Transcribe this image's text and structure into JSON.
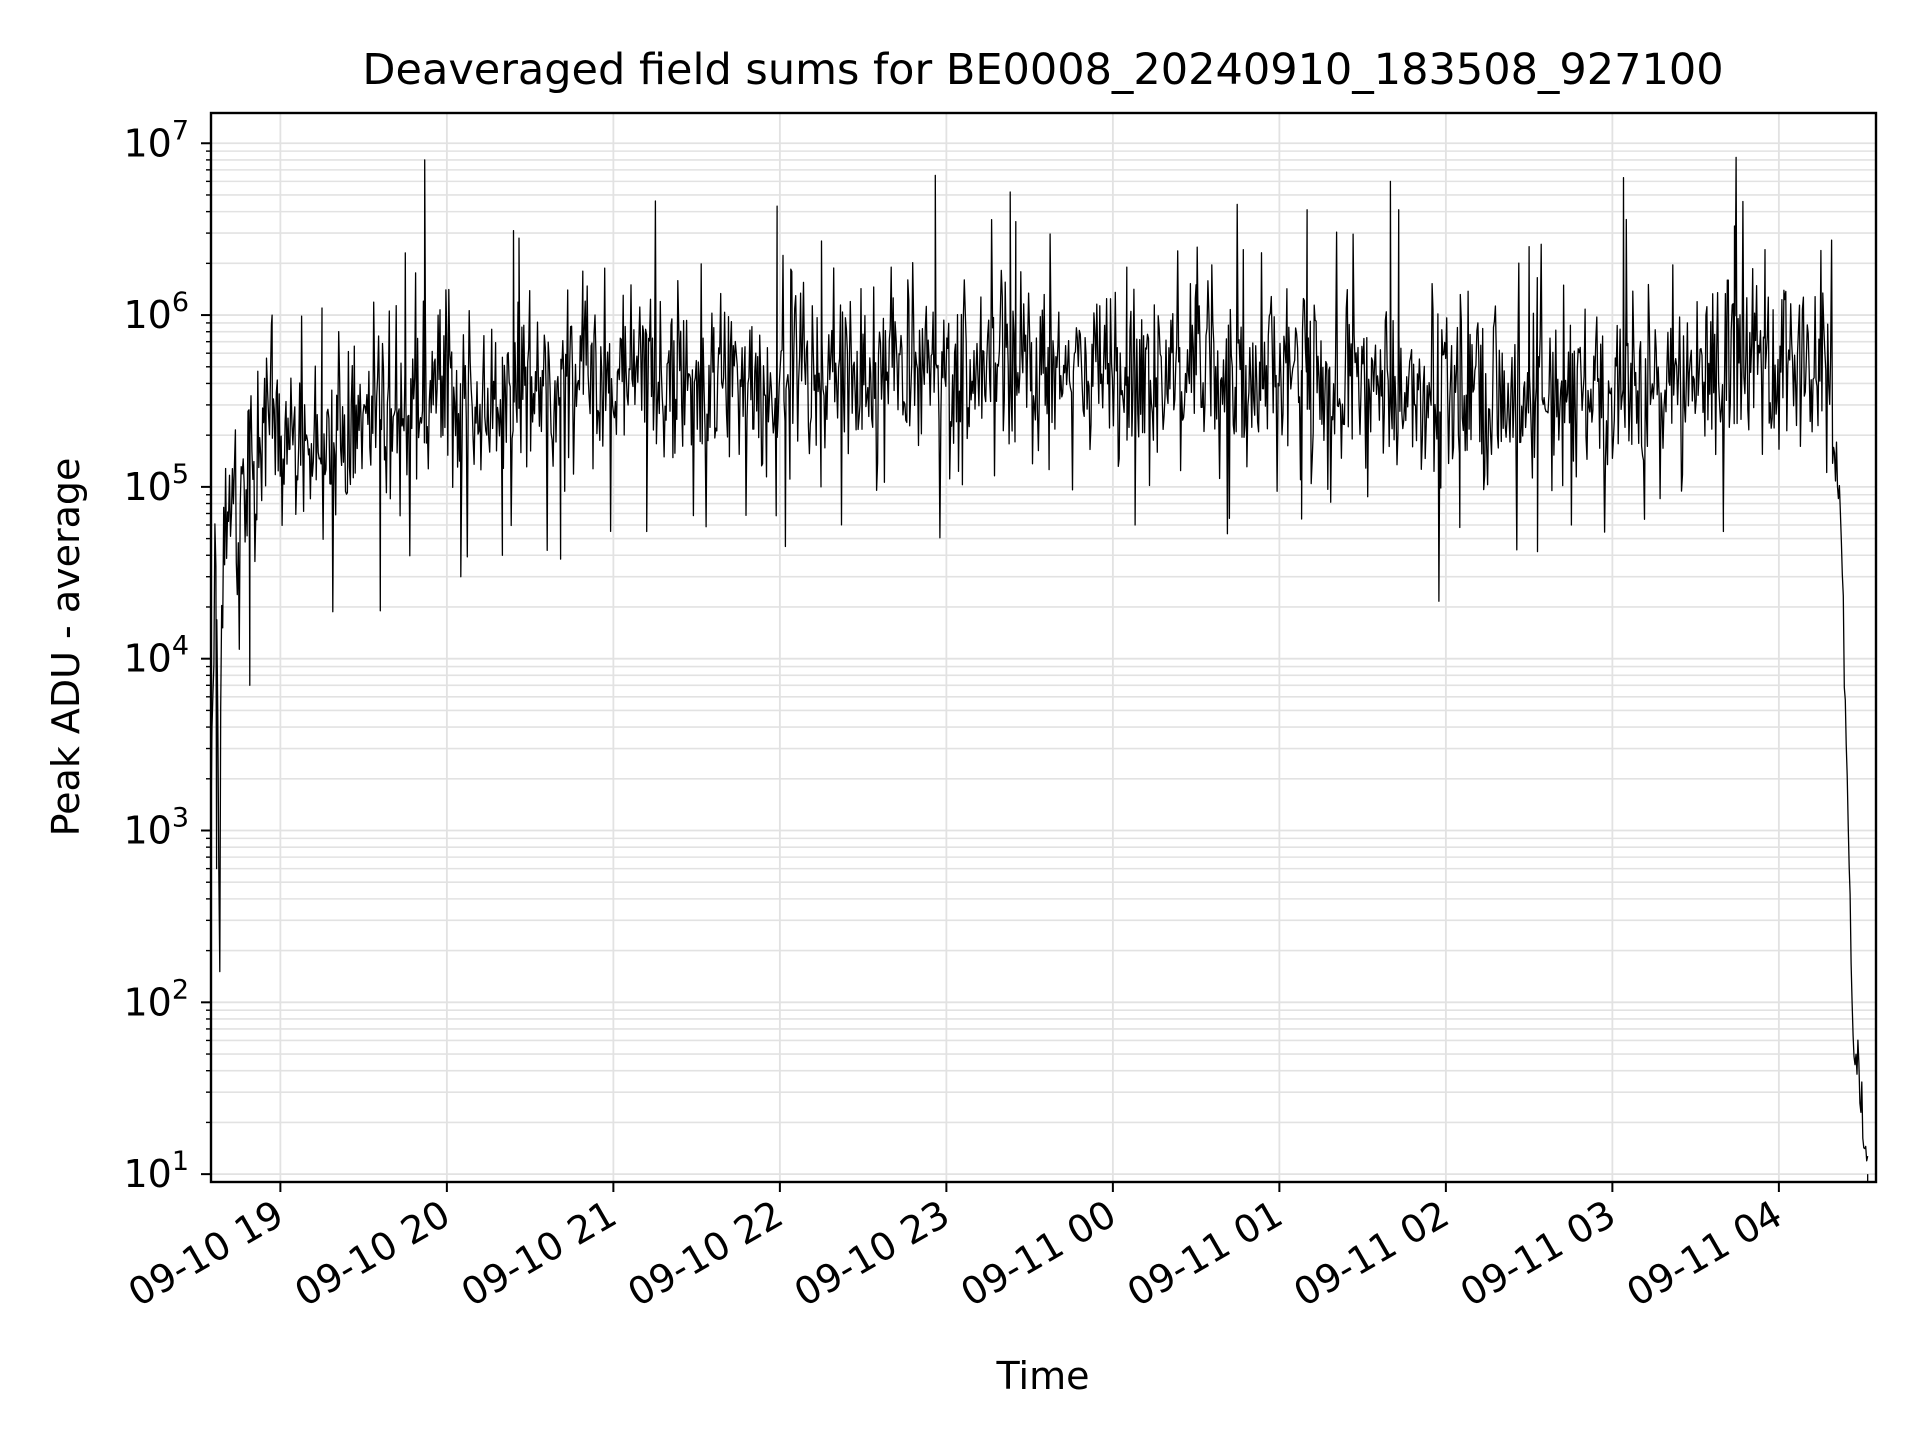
{
  "chart_data": {
    "type": "line",
    "title": "Deaveraged field sums for BE0008_20240910_183508_927100",
    "xlabel": "Time",
    "ylabel": "Peak ADU - average",
    "y_scale": "log",
    "ylim": [
      9,
      15000000
    ],
    "y_ticks": [
      {
        "value": 10,
        "mant": "10",
        "exp": "1"
      },
      {
        "value": 100,
        "mant": "10",
        "exp": "2"
      },
      {
        "value": 1000,
        "mant": "10",
        "exp": "3"
      },
      {
        "value": 10000,
        "mant": "10",
        "exp": "4"
      },
      {
        "value": 100000,
        "mant": "10",
        "exp": "5"
      },
      {
        "value": 1000000,
        "mant": "10",
        "exp": "6"
      },
      {
        "value": 10000000,
        "mant": "10",
        "exp": "7"
      }
    ],
    "xlim": [
      "2024-09-10 18:35",
      "2024-09-11 04:35"
    ],
    "x_ticks": [
      {
        "value": "2024-09-10 19:00",
        "label": "09-10 19"
      },
      {
        "value": "2024-09-10 20:00",
        "label": "09-10 20"
      },
      {
        "value": "2024-09-10 21:00",
        "label": "09-10 21"
      },
      {
        "value": "2024-09-10 22:00",
        "label": "09-10 22"
      },
      {
        "value": "2024-09-10 23:00",
        "label": "09-10 23"
      },
      {
        "value": "2024-09-11 00:00",
        "label": "09-11 00"
      },
      {
        "value": "2024-09-11 01:00",
        "label": "09-11 01"
      },
      {
        "value": "2024-09-11 02:00",
        "label": "09-11 02"
      },
      {
        "value": "2024-09-11 03:00",
        "label": "09-11 03"
      },
      {
        "value": "2024-09-11 04:00",
        "label": "09-11 04"
      }
    ],
    "grid": true,
    "series": [
      {
        "color": "#000000",
        "x": [
          "2024-09-10 18:35",
          "2024-09-10 18:36",
          "2024-09-10 18:37",
          "2024-09-10 18:38",
          "2024-09-10 18:40",
          "2024-09-10 18:45",
          "2024-09-10 18:50",
          "2024-09-10 18:55",
          "2024-09-10 19:00",
          "2024-09-10 19:10",
          "2024-09-10 19:20",
          "2024-09-10 19:30",
          "2024-09-10 19:40",
          "2024-09-10 19:50",
          "2024-09-10 19:55",
          "2024-09-10 20:00",
          "2024-09-10 20:15",
          "2024-09-10 20:30",
          "2024-09-10 20:45",
          "2024-09-10 21:00",
          "2024-09-10 21:30",
          "2024-09-10 22:00",
          "2024-09-10 22:30",
          "2024-09-10 23:00",
          "2024-09-10 23:30",
          "2024-09-11 00:00",
          "2024-09-11 00:30",
          "2024-09-11 01:00",
          "2024-09-11 01:30",
          "2024-09-11 02:00",
          "2024-09-11 02:30",
          "2024-09-11 03:00",
          "2024-09-11 03:30",
          "2024-09-11 03:45",
          "2024-09-11 04:00",
          "2024-09-11 04:15",
          "2024-09-11 04:19",
          "2024-09-11 04:22",
          "2024-09-11 04:24",
          "2024-09-11 04:25",
          "2024-09-11 04:26",
          "2024-09-11 04:27",
          "2024-09-11 04:28",
          "2024-09-11 04:30",
          "2024-09-11 04:32"
        ],
        "y": [
          2000,
          20000,
          30000,
          600,
          80000,
          70000,
          150000,
          180000,
          150000,
          200000,
          180000,
          220000,
          250000,
          280000,
          300000,
          350000,
          300000,
          350000,
          400000,
          420000,
          380000,
          400000,
          420000,
          480000,
          500000,
          500000,
          450000,
          420000,
          380000,
          330000,
          320000,
          350000,
          400000,
          500000,
          550000,
          500000,
          300000,
          100000,
          5000,
          1000,
          200,
          60,
          40,
          20,
          10
        ]
      }
    ],
    "peaks": {
      "x": [
        "2024-09-10 18:57",
        "2024-09-10 19:15",
        "2024-09-10 19:45",
        "2024-09-10 19:52",
        "2024-09-10 20:24",
        "2024-09-10 20:26",
        "2024-09-10 20:49",
        "2024-09-10 21:15",
        "2024-09-10 21:59",
        "2024-09-10 22:15",
        "2024-09-10 22:56",
        "2024-09-10 23:23",
        "2024-09-10 23:25",
        "2024-09-11 00:05",
        "2024-09-11 00:30",
        "2024-09-11 00:47",
        "2024-09-11 01:10",
        "2024-09-11 01:40",
        "2024-09-11 01:43",
        "2024-09-11 02:30",
        "2024-09-11 03:04",
        "2024-09-11 03:05",
        "2024-09-11 03:44",
        "2024-09-11 03:55"
      ],
      "y": [
        1000000,
        1100000,
        2300000,
        8000000,
        3100000,
        2800000,
        1800000,
        1600000,
        4300000,
        2700000,
        6500000,
        5200000,
        3500000,
        1900000,
        1500000,
        2400000,
        4100000,
        6000000,
        4100000,
        2500000,
        6300000,
        3600000,
        3300000,
        2400000
      ]
    },
    "dips": {
      "x": [
        "2024-09-10 18:37",
        "2024-09-10 18:49",
        "2024-09-10 19:36",
        "2024-09-10 20:05",
        "2024-09-10 20:20",
        "2024-09-10 20:41",
        "2024-09-10 21:12",
        "2024-09-10 22:02",
        "2024-09-11 00:08",
        "2024-09-11 01:08",
        "2024-09-11 02:05",
        "2024-09-11 02:33",
        "2024-09-11 03:40"
      ],
      "y": [
        600,
        7000,
        19000,
        30000,
        40000,
        38000,
        55000,
        45000,
        60000,
        65000,
        58000,
        42000,
        55000
      ]
    }
  }
}
